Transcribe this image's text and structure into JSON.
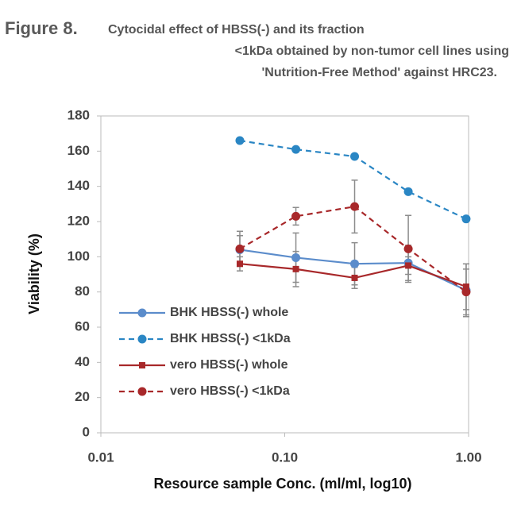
{
  "chart_data": {
    "type": "line",
    "figure_label": "Figure 8.",
    "title_lines": [
      "Cytocidal effect of HBSS(-) and its fraction",
      "<1kDa obtained by non-tumor cell lines using",
      "'Nutrition-Free Method' against HRC23."
    ],
    "xlabel": "Resource sample Conc. (ml/ml, log10)",
    "ylabel": "Viability (%)",
    "log_x": true,
    "xlim": [
      0.01,
      1
    ],
    "xticks": [
      {
        "value": 0.01,
        "label": "0.01"
      },
      {
        "value": 0.1,
        "label": "0.10"
      },
      {
        "value": 1,
        "label": "1.00"
      }
    ],
    "ylim": [
      0,
      180
    ],
    "yticks": [
      0,
      20,
      40,
      60,
      80,
      100,
      120,
      140,
      160,
      180
    ],
    "grid": false,
    "legend": "left",
    "x": [
      0.057,
      0.115,
      0.24,
      0.47,
      0.97
    ],
    "series": [
      {
        "name": "BHK HBSS(-) whole",
        "color": "#5b8ccb",
        "dash": false,
        "marker": "circle",
        "values": [
          104,
          99.5,
          96,
          96.5,
          81
        ],
        "errors": [
          8,
          14,
          12,
          10,
          15
        ]
      },
      {
        "name": "BHK HBSS(-) <1kDa",
        "color": "#2a86c4",
        "dash": true,
        "marker": "circle",
        "values": [
          166,
          161,
          157,
          137,
          121.5
        ]
      },
      {
        "name": "vero HBSS(-) whole",
        "color": "#a8282a",
        "dash": false,
        "marker": "square",
        "values": [
          96,
          93,
          88,
          95,
          83
        ],
        "errors": [
          4,
          10,
          6,
          5,
          13
        ]
      },
      {
        "name": "vero HBSS(-) <1kDa",
        "color": "#a8282a",
        "dash": true,
        "marker": "circle",
        "values": [
          104.5,
          123,
          128.5,
          104.5,
          80
        ],
        "errors": [
          10,
          5,
          15,
          19,
          13
        ]
      }
    ]
  }
}
